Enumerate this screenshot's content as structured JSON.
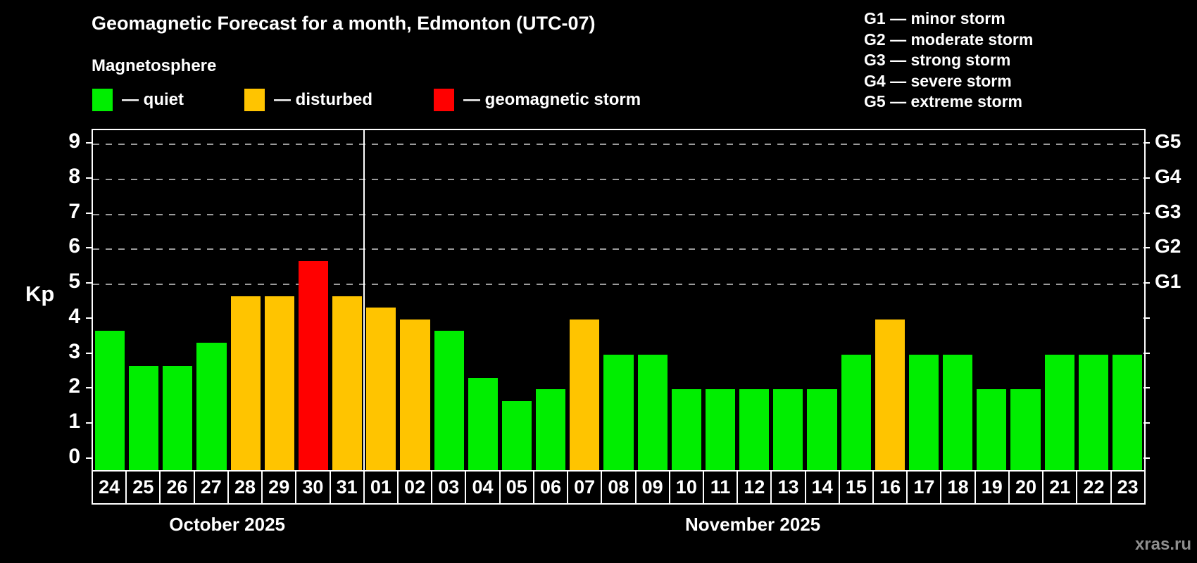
{
  "title": "Geomagnetic Forecast for a month, Edmonton (UTC-07)",
  "subtitle": "Magnetosphere",
  "legend": {
    "items": [
      {
        "key": "quiet",
        "label": "— quiet",
        "color": "#00ee00"
      },
      {
        "key": "disturbed",
        "label": "— disturbed",
        "color": "#ffc400"
      },
      {
        "key": "storm",
        "label": "— geomagnetic storm",
        "color": "#ff0000"
      }
    ]
  },
  "storm_scale_legend": [
    "G1 — minor storm",
    "G2 — moderate storm",
    "G3 — strong storm",
    "G4 — severe storm",
    "G5 — extreme storm"
  ],
  "watermark": "xras.ru",
  "chart_data": {
    "type": "bar",
    "ylabel": "Kp",
    "ylim": [
      0,
      9
    ],
    "y_ticks": [
      0,
      1,
      2,
      3,
      4,
      5,
      6,
      7,
      8,
      9
    ],
    "gridlines_at": [
      5,
      6,
      7,
      8,
      9
    ],
    "grid_color": "#9b9b9b",
    "right_axis_labels": [
      {
        "label": "G5",
        "kp": 9
      },
      {
        "label": "G4",
        "kp": 8
      },
      {
        "label": "G3",
        "kp": 7
      },
      {
        "label": "G2",
        "kp": 6
      },
      {
        "label": "G1",
        "kp": 5
      }
    ],
    "months": [
      {
        "label": "October 2025",
        "days": 8
      },
      {
        "label": "November 2025",
        "days": 23
      }
    ],
    "bars": [
      {
        "day": "24",
        "kp": 3.67,
        "status": "quiet"
      },
      {
        "day": "25",
        "kp": 2.67,
        "status": "quiet"
      },
      {
        "day": "26",
        "kp": 2.67,
        "status": "quiet"
      },
      {
        "day": "27",
        "kp": 3.33,
        "status": "quiet"
      },
      {
        "day": "28",
        "kp": 4.67,
        "status": "disturbed"
      },
      {
        "day": "29",
        "kp": 4.67,
        "status": "disturbed"
      },
      {
        "day": "30",
        "kp": 5.67,
        "status": "storm"
      },
      {
        "day": "31",
        "kp": 4.67,
        "status": "disturbed"
      },
      {
        "day": "01",
        "kp": 4.33,
        "status": "disturbed"
      },
      {
        "day": "02",
        "kp": 4.0,
        "status": "disturbed"
      },
      {
        "day": "03",
        "kp": 3.67,
        "status": "quiet"
      },
      {
        "day": "04",
        "kp": 2.33,
        "status": "quiet"
      },
      {
        "day": "05",
        "kp": 1.67,
        "status": "quiet"
      },
      {
        "day": "06",
        "kp": 2.0,
        "status": "quiet"
      },
      {
        "day": "07",
        "kp": 4.0,
        "status": "disturbed"
      },
      {
        "day": "08",
        "kp": 3.0,
        "status": "quiet"
      },
      {
        "day": "09",
        "kp": 3.0,
        "status": "quiet"
      },
      {
        "day": "10",
        "kp": 2.0,
        "status": "quiet"
      },
      {
        "day": "11",
        "kp": 2.0,
        "status": "quiet"
      },
      {
        "day": "12",
        "kp": 2.0,
        "status": "quiet"
      },
      {
        "day": "13",
        "kp": 2.0,
        "status": "quiet"
      },
      {
        "day": "14",
        "kp": 2.0,
        "status": "quiet"
      },
      {
        "day": "15",
        "kp": 3.0,
        "status": "quiet"
      },
      {
        "day": "16",
        "kp": 4.0,
        "status": "disturbed"
      },
      {
        "day": "17",
        "kp": 3.0,
        "status": "quiet"
      },
      {
        "day": "18",
        "kp": 3.0,
        "status": "quiet"
      },
      {
        "day": "19",
        "kp": 2.0,
        "status": "quiet"
      },
      {
        "day": "20",
        "kp": 2.0,
        "status": "quiet"
      },
      {
        "day": "21",
        "kp": 3.0,
        "status": "quiet"
      },
      {
        "day": "22",
        "kp": 3.0,
        "status": "quiet"
      },
      {
        "day": "23",
        "kp": 3.0,
        "status": "quiet"
      }
    ]
  }
}
